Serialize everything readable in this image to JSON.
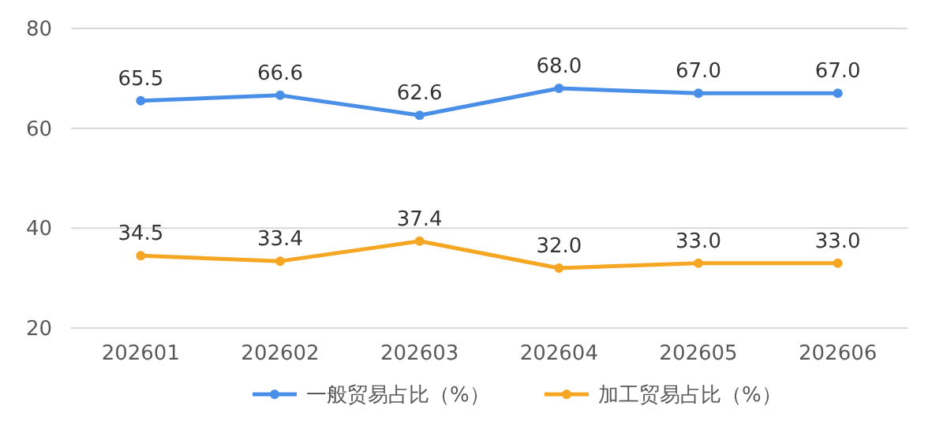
{
  "chart_data": {
    "type": "line",
    "categories": [
      "202601",
      "202602",
      "202603",
      "202604",
      "202605",
      "202606"
    ],
    "series": [
      {
        "name": "一般贸易占比（%）",
        "color": "#4a8fe7",
        "values": [
          65.5,
          66.6,
          62.6,
          68.0,
          67.0,
          67.0
        ],
        "value_labels": [
          "65.5",
          "66.6",
          "62.6",
          "68.0",
          "67.0",
          "67.0"
        ]
      },
      {
        "name": "加工贸易占比（%）",
        "color": "#f5a623",
        "values": [
          34.5,
          33.4,
          37.4,
          32.0,
          33.0,
          33.0
        ],
        "value_labels": [
          "34.5",
          "33.4",
          "37.4",
          "32.0",
          "33.0",
          "33.0"
        ]
      }
    ],
    "ylim": [
      20,
      80
    ],
    "yticks": [
      20,
      40,
      60,
      80
    ],
    "grid": "y",
    "legend": "bottom",
    "marker": "circle",
    "line_style": "solid"
  }
}
